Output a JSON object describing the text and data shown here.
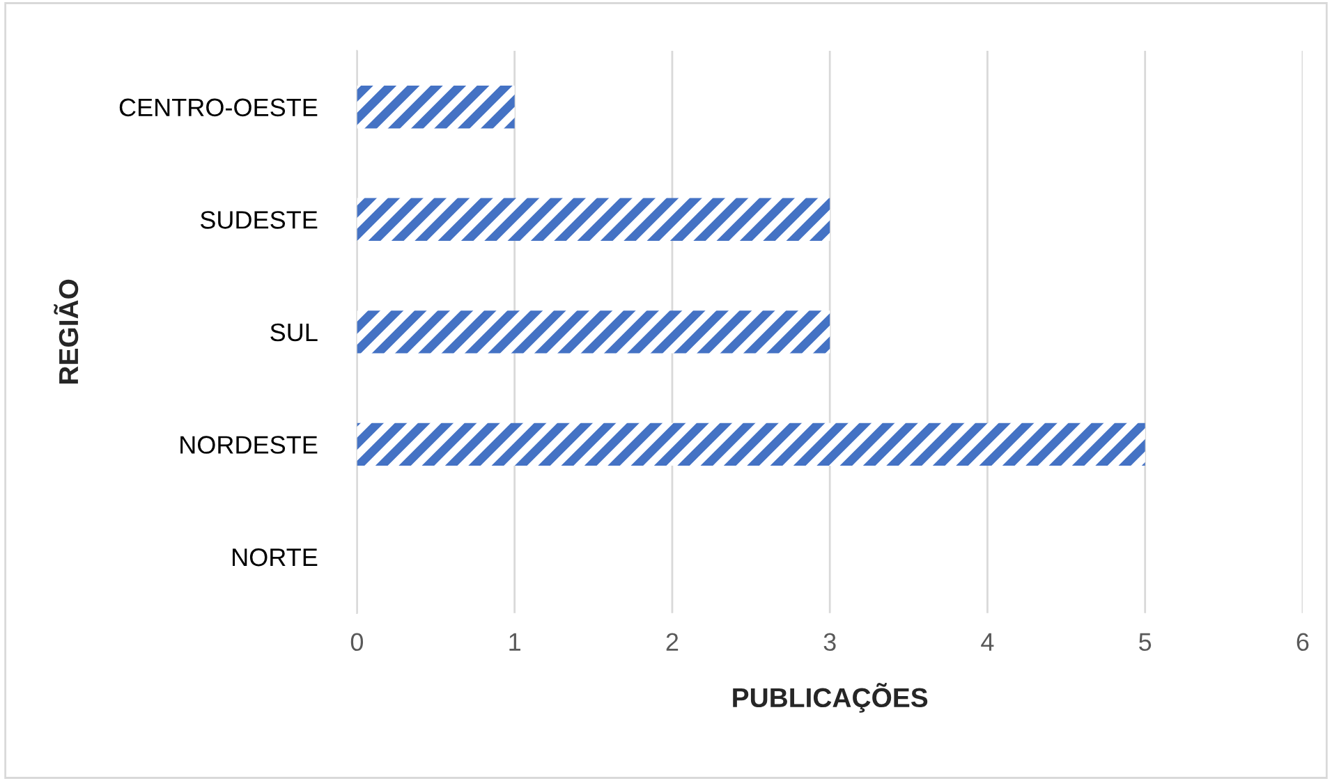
{
  "chart_data": {
    "type": "bar",
    "orientation": "horizontal",
    "xlabel": "PUBLICAÇÕES",
    "ylabel": "REGIÃO",
    "categories": [
      "CENTRO-OESTE",
      "SUDESTE",
      "SUL",
      "NORDESTE",
      "NORTE"
    ],
    "values": [
      1,
      3,
      3,
      5,
      0
    ],
    "color": "#4472c4",
    "xlim": [
      0,
      6
    ],
    "xticks": [
      0,
      1,
      2,
      3,
      4,
      5,
      6
    ],
    "grid": "x"
  }
}
